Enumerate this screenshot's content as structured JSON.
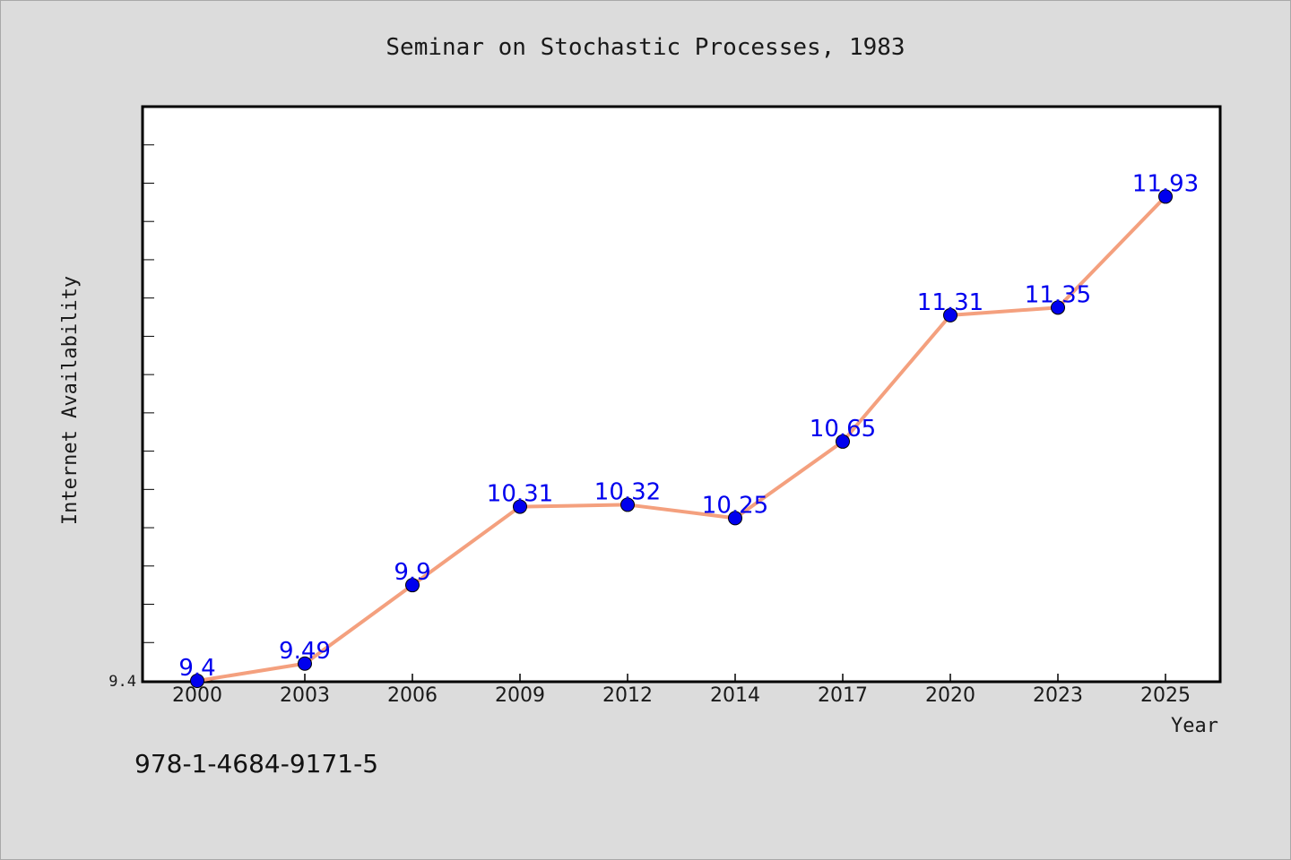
{
  "chart_data": {
    "type": "line",
    "title": "Seminar on Stochastic Processes, 1983",
    "xlabel": "Year",
    "ylabel": "Internet Availability",
    "categories": [
      "2000",
      "2003",
      "2006",
      "2009",
      "2012",
      "2014",
      "2017",
      "2020",
      "2023",
      "2025"
    ],
    "series": [
      {
        "values": [
          9.4,
          9.49,
          9.9,
          10.31,
          10.32,
          10.25,
          10.65,
          11.31,
          11.35,
          11.93
        ]
      }
    ],
    "data_labels": [
      "9.4",
      "9.49",
      "9.9",
      "10.31",
      "10.32",
      "10.25",
      "10.65",
      "11.31",
      "11.35",
      "11.93"
    ],
    "ytick_labels": [
      "9.4"
    ],
    "ylim": [
      9.4,
      12.4
    ],
    "grid": false,
    "colors": {
      "line": "#f4a07e",
      "marker": "#0000ee",
      "label": "#0000ee",
      "background": "#dcdcdc",
      "plot_background": "#ffffff"
    }
  },
  "footer": {
    "text": "978-1-4684-9171-5"
  }
}
